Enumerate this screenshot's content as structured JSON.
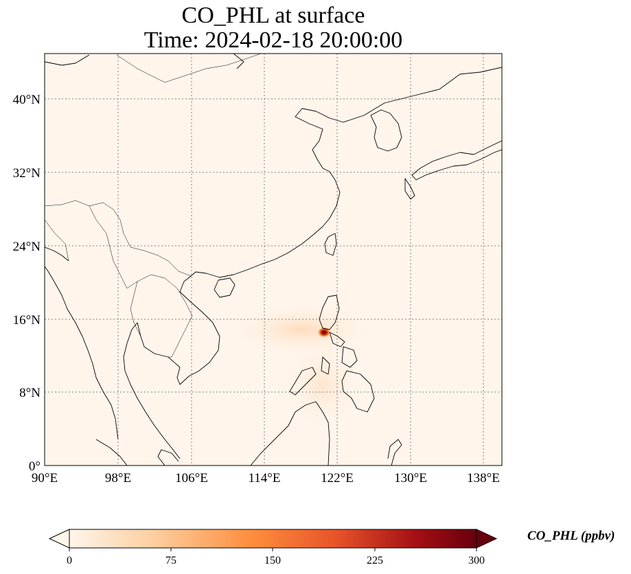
{
  "title": {
    "line1": "CO_PHL at surface",
    "line2": "Time: 2024-02-18 20:00:00"
  },
  "map": {
    "lon_ticks": [
      "90°E",
      "98°E",
      "106°E",
      "114°E",
      "122°E",
      "130°E",
      "138°E"
    ],
    "lat_ticks": [
      "0°",
      "8°N",
      "16°N",
      "24°N",
      "32°N",
      "40°N"
    ],
    "background_color": "#fff5eb",
    "hotspot_label": "CO_PHL plume near Manila"
  },
  "colorbar": {
    "label": "CO_PHL (ppbv)",
    "ticks": [
      "0",
      "75",
      "150",
      "225",
      "300"
    ],
    "colormap": [
      "#fff5eb",
      "#fdd0a2",
      "#fd8d3c",
      "#d94801",
      "#a50f15",
      "#67000d"
    ]
  }
}
